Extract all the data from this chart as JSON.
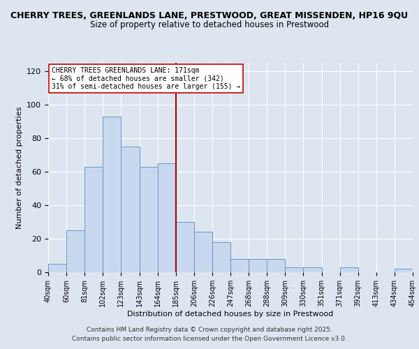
{
  "title_line1": "CHERRY TREES, GREENLANDS LANE, PRESTWOOD, GREAT MISSENDEN, HP16 9QU",
  "title_line2": "Size of property relative to detached houses in Prestwood",
  "xlabel": "Distribution of detached houses by size in Prestwood",
  "ylabel": "Number of detached properties",
  "categories": [
    "40sqm",
    "60sqm",
    "81sqm",
    "102sqm",
    "123sqm",
    "143sqm",
    "164sqm",
    "185sqm",
    "206sqm",
    "226sqm",
    "247sqm",
    "268sqm",
    "288sqm",
    "309sqm",
    "330sqm",
    "351sqm",
    "371sqm",
    "392sqm",
    "413sqm",
    "434sqm",
    "454sqm"
  ],
  "values": [
    5,
    25,
    63,
    93,
    75,
    63,
    65,
    30,
    24,
    18,
    8,
    8,
    8,
    3,
    3,
    0,
    3,
    0,
    0,
    2
  ],
  "bar_color": "#c8d8ee",
  "bar_edge_color": "#6699cc",
  "marker_label": "CHERRY TREES GREENLANDS LANE: 171sqm",
  "annotation_line2": "← 68% of detached houses are smaller (342)",
  "annotation_line3": "31% of semi-detached houses are larger (155) →",
  "vertical_line_color": "#aa0000",
  "annotation_box_color": "#ffffff",
  "annotation_box_edge": "#cc0000",
  "ylim": [
    0,
    125
  ],
  "yticks": [
    0,
    20,
    40,
    60,
    80,
    100,
    120
  ],
  "background_color": "#dde6f0",
  "footer_line1": "Contains HM Land Registry data © Crown copyright and database right 2025.",
  "footer_line2": "Contains public sector information licensed under the Open Government Licence v3.0."
}
